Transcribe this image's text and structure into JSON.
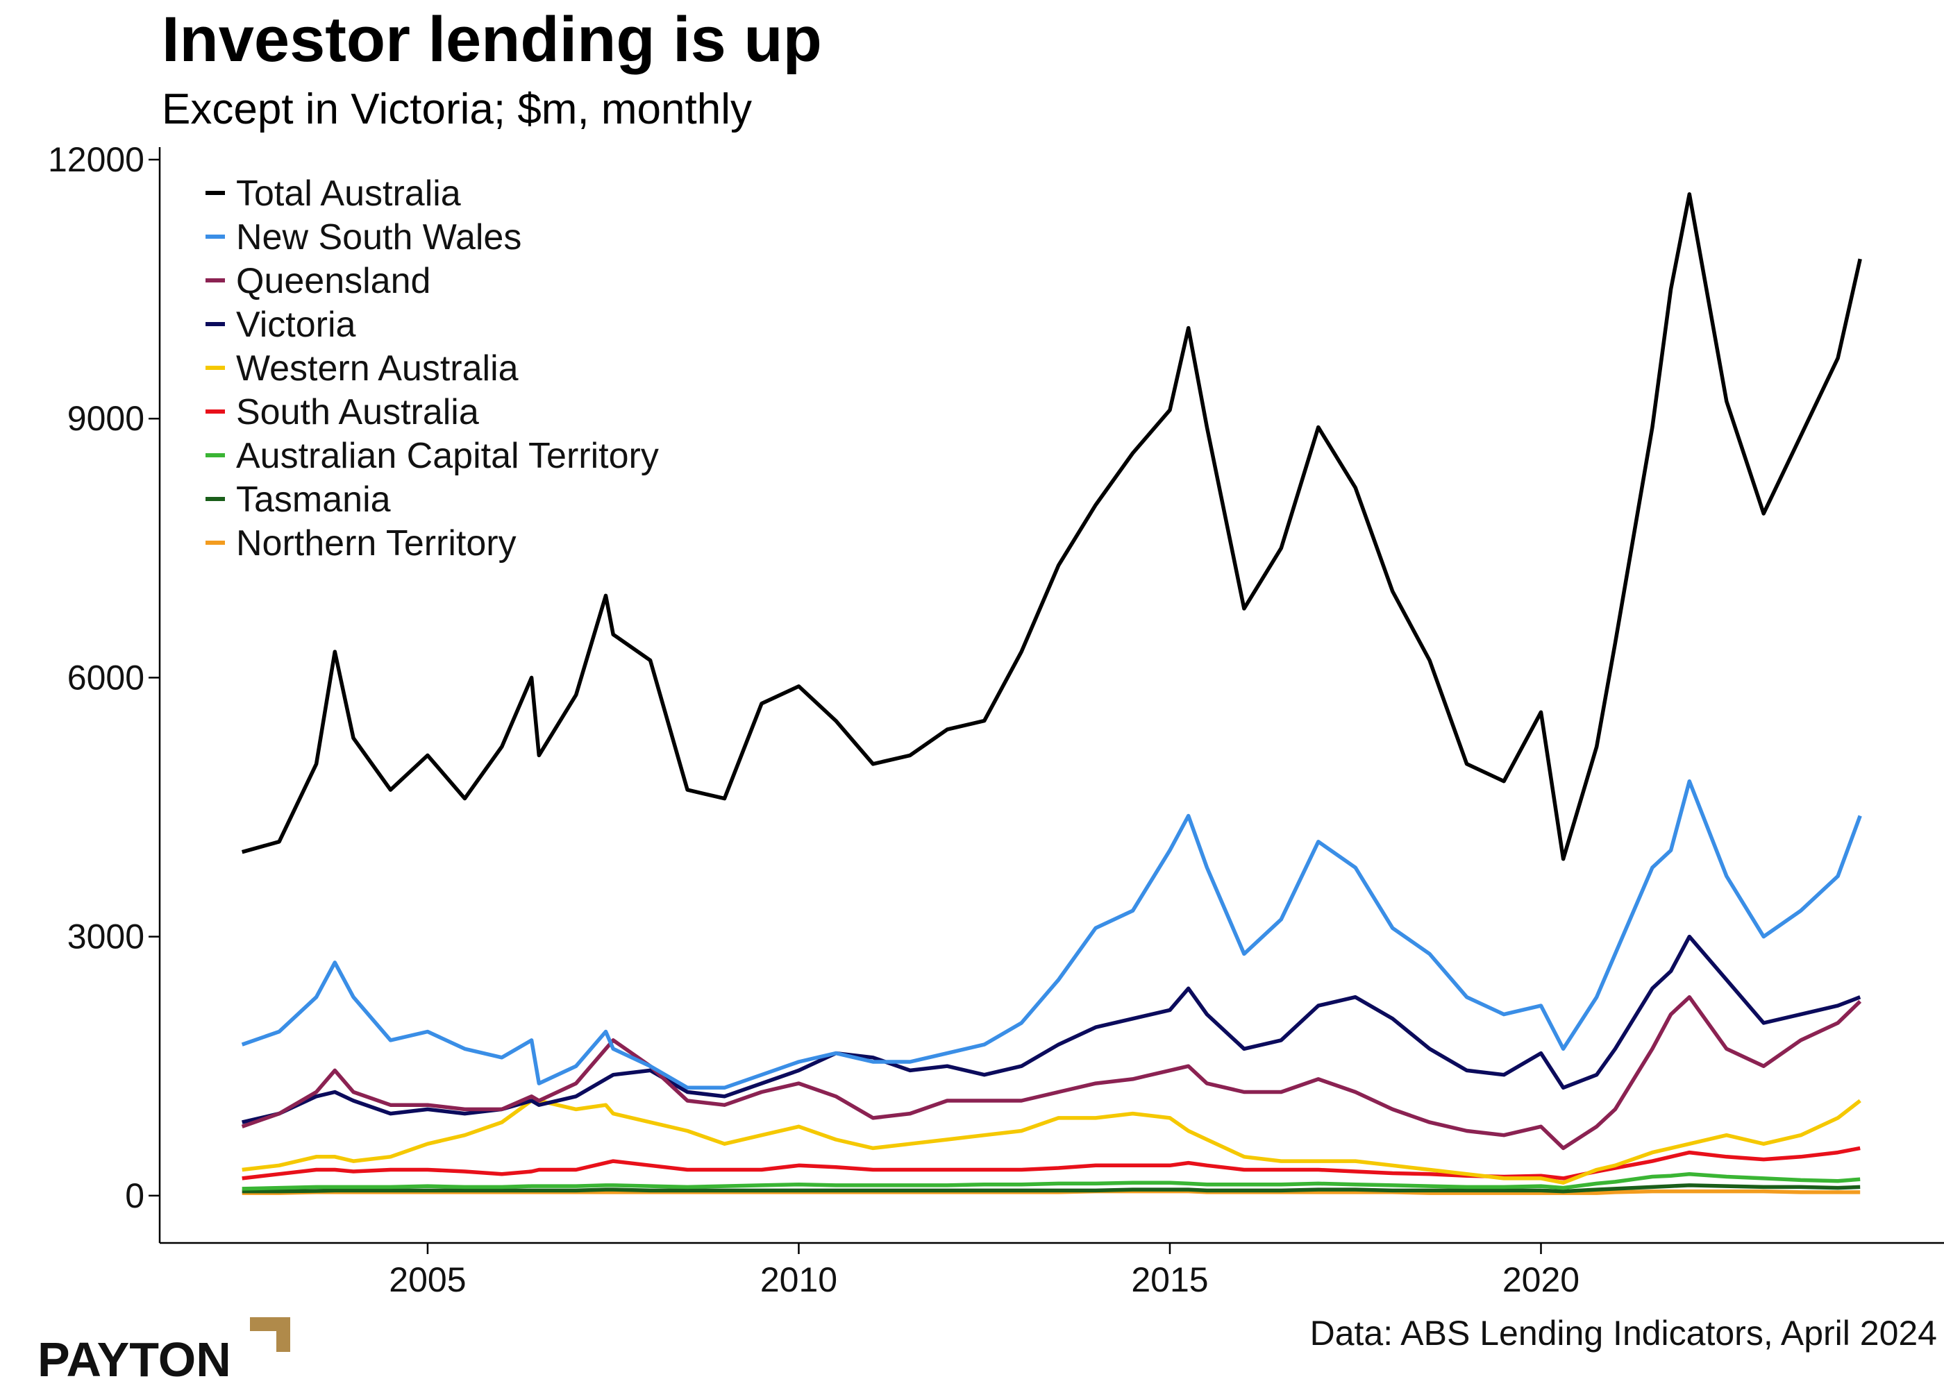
{
  "chart_data": {
    "type": "line",
    "title": "Investor lending is up",
    "subtitle": "Except in Victoria; $m, monthly",
    "source": "Data: ABS Lending Indicators, April 2024",
    "logo": "PAYTON",
    "x": [
      2002.5,
      2003,
      2003.5,
      2003.75,
      2004,
      2004.5,
      2005,
      2005.5,
      2006,
      2006.4,
      2006.5,
      2007,
      2007.4,
      2007.5,
      2008,
      2008.5,
      2009,
      2009.5,
      2010,
      2010.5,
      2011,
      2011.5,
      2012,
      2012.5,
      2013,
      2013.5,
      2014,
      2014.5,
      2015,
      2015.25,
      2015.5,
      2016,
      2016.5,
      2017,
      2017.5,
      2018,
      2018.5,
      2019,
      2019.5,
      2020,
      2020.3,
      2020.75,
      2021,
      2021.5,
      2021.75,
      2022,
      2022.5,
      2023,
      2023.5,
      2024,
      2024.3
    ],
    "xlim": [
      2001.39,
      2025.43
    ],
    "xticks": [
      2005,
      2010,
      2015,
      2020
    ],
    "ylim": [
      -548,
      12000
    ],
    "yticks": [
      0,
      3000,
      6000,
      9000,
      12000
    ],
    "legend": "upper left",
    "series": [
      {
        "name": "Total Australia",
        "color": "#000000",
        "values": [
          3980,
          4100,
          5000,
          6300,
          5300,
          4700,
          5100,
          4600,
          5200,
          6000,
          5100,
          5800,
          6950,
          6500,
          6200,
          4700,
          4600,
          5700,
          5900,
          5500,
          5000,
          5100,
          5400,
          5500,
          6300,
          7300,
          8000,
          8600,
          9100,
          10050,
          8900,
          6800,
          7500,
          8900,
          8200,
          7000,
          6200,
          5000,
          4800,
          5600,
          3900,
          5200,
          6400,
          8900,
          10500,
          11600,
          9200,
          7900,
          8800,
          9700,
          10850
        ]
      },
      {
        "name": "New South Wales",
        "color": "#3a8ee6",
        "values": [
          1750,
          1900,
          2300,
          2700,
          2300,
          1800,
          1900,
          1700,
          1600,
          1800,
          1300,
          1500,
          1900,
          1700,
          1500,
          1250,
          1250,
          1400,
          1550,
          1650,
          1550,
          1550,
          1650,
          1750,
          2000,
          2500,
          3100,
          3300,
          4000,
          4400,
          3800,
          2800,
          3200,
          4100,
          3800,
          3100,
          2800,
          2300,
          2100,
          2200,
          1700,
          2300,
          2800,
          3800,
          4000,
          4800,
          3700,
          3000,
          3300,
          3700,
          4400
        ]
      },
      {
        "name": "Queensland",
        "color": "#8b2252",
        "values": [
          800,
          950,
          1200,
          1450,
          1200,
          1050,
          1050,
          1000,
          1000,
          1150,
          1100,
          1300,
          1700,
          1800,
          1500,
          1100,
          1050,
          1200,
          1300,
          1150,
          900,
          950,
          1100,
          1100,
          1100,
          1200,
          1300,
          1350,
          1450,
          1500,
          1300,
          1200,
          1200,
          1350,
          1200,
          1000,
          850,
          750,
          700,
          800,
          550,
          800,
          1000,
          1700,
          2100,
          2300,
          1700,
          1500,
          1800,
          2000,
          2250
        ]
      },
      {
        "name": "Victoria",
        "color": "#0b0b5c",
        "values": [
          850,
          950,
          1150,
          1200,
          1100,
          950,
          1000,
          950,
          1000,
          1100,
          1050,
          1150,
          1350,
          1400,
          1450,
          1200,
          1150,
          1300,
          1450,
          1650,
          1600,
          1450,
          1500,
          1400,
          1500,
          1750,
          1950,
          2050,
          2150,
          2400,
          2100,
          1700,
          1800,
          2200,
          2300,
          2050,
          1700,
          1450,
          1400,
          1650,
          1250,
          1400,
          1700,
          2400,
          2600,
          3000,
          2500,
          2000,
          2100,
          2200,
          2300
        ]
      },
      {
        "name": "Western Australia",
        "color": "#f5c800",
        "values": [
          300,
          350,
          450,
          450,
          400,
          450,
          600,
          700,
          850,
          1100,
          1100,
          1000,
          1050,
          950,
          850,
          750,
          600,
          700,
          800,
          650,
          550,
          600,
          650,
          700,
          750,
          900,
          900,
          950,
          900,
          750,
          650,
          450,
          400,
          400,
          400,
          350,
          300,
          250,
          200,
          200,
          150,
          300,
          350,
          500,
          550,
          600,
          700,
          600,
          700,
          900,
          1100
        ]
      },
      {
        "name": "South Australia",
        "color": "#e8101a",
        "values": [
          200,
          250,
          300,
          300,
          280,
          300,
          300,
          280,
          250,
          280,
          300,
          300,
          380,
          400,
          350,
          300,
          300,
          300,
          350,
          330,
          300,
          300,
          300,
          300,
          300,
          320,
          350,
          350,
          350,
          380,
          350,
          300,
          300,
          300,
          280,
          260,
          250,
          230,
          220,
          230,
          200,
          280,
          320,
          400,
          450,
          500,
          450,
          420,
          450,
          500,
          550
        ]
      },
      {
        "name": "Australian Capital Territory",
        "color": "#3ab534",
        "values": [
          80,
          90,
          100,
          100,
          100,
          100,
          110,
          100,
          100,
          110,
          110,
          110,
          120,
          120,
          110,
          100,
          110,
          120,
          130,
          120,
          120,
          120,
          120,
          130,
          130,
          140,
          140,
          150,
          150,
          140,
          130,
          130,
          130,
          140,
          130,
          120,
          110,
          100,
          100,
          110,
          90,
          140,
          160,
          220,
          230,
          250,
          220,
          200,
          180,
          170,
          190
        ]
      },
      {
        "name": "Tasmania",
        "color": "#1a5e1a",
        "values": [
          50,
          50,
          55,
          60,
          60,
          60,
          60,
          60,
          60,
          60,
          60,
          60,
          70,
          70,
          60,
          60,
          60,
          60,
          60,
          60,
          60,
          60,
          60,
          60,
          60,
          60,
          60,
          70,
          70,
          70,
          60,
          60,
          60,
          70,
          70,
          60,
          60,
          60,
          60,
          60,
          50,
          70,
          80,
          100,
          110,
          120,
          110,
          100,
          100,
          90,
          100
        ]
      },
      {
        "name": "Northern Territory",
        "color": "#f39c1f",
        "values": [
          30,
          30,
          40,
          40,
          40,
          40,
          40,
          40,
          40,
          40,
          40,
          40,
          40,
          40,
          40,
          40,
          40,
          40,
          40,
          40,
          40,
          40,
          40,
          40,
          40,
          40,
          50,
          50,
          50,
          50,
          40,
          40,
          40,
          40,
          40,
          40,
          30,
          30,
          30,
          30,
          30,
          30,
          40,
          50,
          50,
          50,
          50,
          50,
          40,
          40,
          40
        ]
      }
    ]
  }
}
